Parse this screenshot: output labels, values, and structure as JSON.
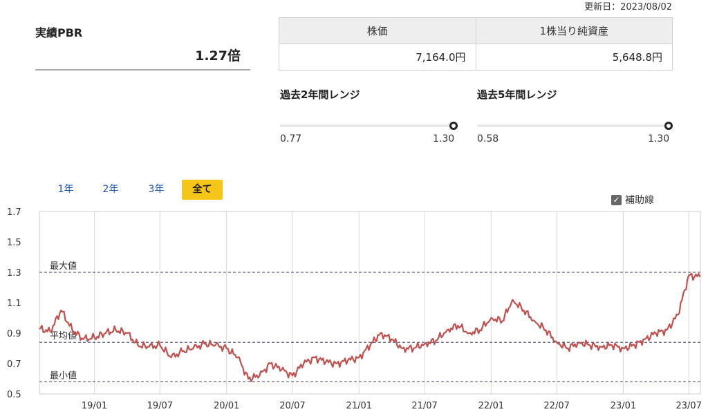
{
  "header": {
    "updated": "更新日：2023/08/02"
  },
  "pbr": {
    "label": "実績PBR",
    "value": "1.27倍"
  },
  "price_table": {
    "headers": [
      "株価",
      "1株当り純資産"
    ],
    "values": [
      "7,164.0円",
      "5,648.8円"
    ]
  },
  "ranges": [
    {
      "title": "過去2年間レンジ",
      "min": "0.77",
      "max": "1.30",
      "position": 1.0
    },
    {
      "title": "過去5年間レンジ",
      "min": "0.58",
      "max": "1.30",
      "position": 1.0
    }
  ],
  "tabs": [
    {
      "label": "1年",
      "active": false
    },
    {
      "label": "2年",
      "active": false
    },
    {
      "label": "3年",
      "active": false
    },
    {
      "label": "全て",
      "active": true
    }
  ],
  "aux_lines": {
    "label": "補助線",
    "checked": true,
    "check_glyph": "✓"
  },
  "chart_data": {
    "type": "line",
    "title": "",
    "xlabel": "",
    "ylabel": "",
    "ylim": [
      0.5,
      1.7
    ],
    "yticks": [
      "0.5",
      "0.7",
      "0.9",
      "1.1",
      "1.3",
      "1.5",
      "1.7"
    ],
    "x_range": [
      "2018/08/02",
      "2023/08/02"
    ],
    "xticks": [
      "19/01",
      "19/07",
      "20/01",
      "20/07",
      "21/01",
      "21/07",
      "22/01",
      "22/07",
      "23/01",
      "23/07"
    ],
    "reference_lines": [
      {
        "label": "最大値",
        "value": 1.3
      },
      {
        "label": "平均値",
        "value": 0.84
      },
      {
        "label": "最小値",
        "value": 0.58
      }
    ],
    "line_color": "#c0504d",
    "series": [
      {
        "x": [
          "2018/08",
          "2018/09",
          "2018/10",
          "2018/11",
          "2018/12",
          "2019/01",
          "2019/02",
          "2019/03",
          "2019/04",
          "2019/05",
          "2019/06",
          "2019/07",
          "2019/08",
          "2019/09",
          "2019/10",
          "2019/11",
          "2019/12",
          "2020/01",
          "2020/02",
          "2020/03",
          "2020/04",
          "2020/05",
          "2020/06",
          "2020/07",
          "2020/08",
          "2020/09",
          "2020/10",
          "2020/11",
          "2020/12",
          "2021/01",
          "2021/02",
          "2021/03",
          "2021/04",
          "2021/05",
          "2021/06",
          "2021/07",
          "2021/08",
          "2021/09",
          "2021/10",
          "2021/11",
          "2021/12",
          "2022/01",
          "2022/02",
          "2022/03",
          "2022/04",
          "2022/05",
          "2022/06",
          "2022/07",
          "2022/08",
          "2022/09",
          "2022/10",
          "2022/11",
          "2022/12",
          "2023/01",
          "2023/02",
          "2023/03",
          "2023/04",
          "2023/05",
          "2023/06",
          "2023/07",
          "2023/08"
        ],
        "values": [
          0.93,
          0.91,
          1.05,
          0.92,
          0.86,
          0.87,
          0.9,
          0.92,
          0.9,
          0.82,
          0.81,
          0.82,
          0.74,
          0.78,
          0.8,
          0.83,
          0.82,
          0.8,
          0.74,
          0.6,
          0.62,
          0.7,
          0.66,
          0.62,
          0.7,
          0.74,
          0.71,
          0.7,
          0.72,
          0.74,
          0.82,
          0.9,
          0.86,
          0.8,
          0.8,
          0.83,
          0.85,
          0.92,
          0.95,
          0.9,
          0.92,
          1.0,
          0.98,
          1.12,
          1.05,
          0.98,
          0.92,
          0.84,
          0.8,
          0.84,
          0.82,
          0.81,
          0.82,
          0.8,
          0.82,
          0.86,
          0.9,
          0.92,
          1.02,
          1.28,
          1.27
        ]
      }
    ]
  }
}
